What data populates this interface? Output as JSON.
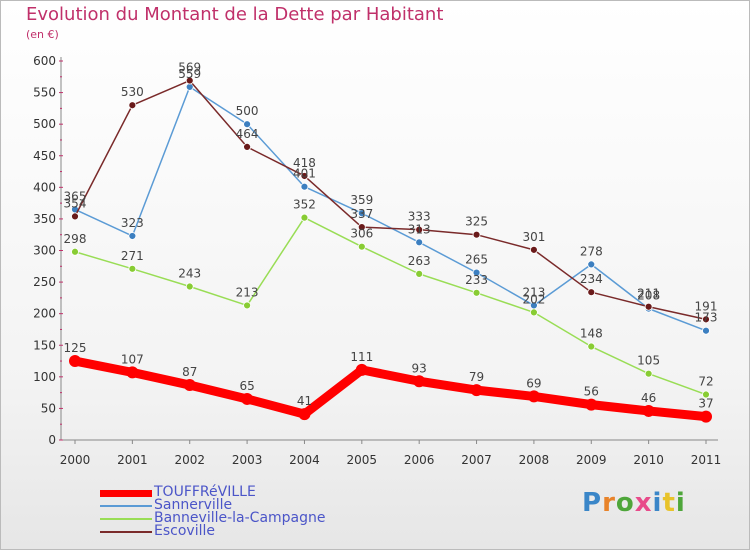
{
  "header": {
    "title": "Evolution du Montant de la Dette par Habitant",
    "subtitle": "(en €)"
  },
  "brand": {
    "logo_text": "Proxiti",
    "letter_colors": [
      "#3a86c8",
      "#e8832a",
      "#4ea63a",
      "#e84b8a",
      "#3a86c8",
      "#e8c32a",
      "#4ea63a"
    ]
  },
  "chart_data": {
    "type": "line",
    "title": "Evolution du Montant de la Dette par Habitant",
    "ylabel": "(en €)",
    "xlabel": "",
    "ylim": [
      0,
      600
    ],
    "yticks": [
      0,
      50,
      100,
      150,
      200,
      250,
      300,
      350,
      400,
      450,
      500,
      550,
      600
    ],
    "x": [
      "2000",
      "2001",
      "2002",
      "2003",
      "2004",
      "2005",
      "2006",
      "2007",
      "2008",
      "2009",
      "2010",
      "2011"
    ],
    "grid": false,
    "legend_position": "bottom-left",
    "series": [
      {
        "name": "TOUFFRéVILLE",
        "color": "#ff0000",
        "marker": "#ff0000",
        "thick": true,
        "values": [
          125,
          107,
          87,
          65,
          41,
          111,
          93,
          79,
          69,
          56,
          46,
          37
        ]
      },
      {
        "name": "Sannerville",
        "color": "#5b9bd5",
        "marker": "#3c7fc0",
        "thick": false,
        "values": [
          365,
          323,
          559,
          500,
          401,
          359,
          313,
          265,
          213,
          278,
          208,
          173
        ]
      },
      {
        "name": "Banneville-la-Campagne",
        "color": "#99dd55",
        "marker": "#88cc33",
        "thick": false,
        "values": [
          298,
          271,
          243,
          213,
          352,
          306,
          263,
          233,
          202,
          148,
          105,
          72
        ]
      },
      {
        "name": "Escoville",
        "color": "#7a2a2a",
        "marker": "#6a1a1a",
        "thick": false,
        "values": [
          354,
          530,
          569,
          464,
          418,
          337,
          333,
          325,
          301,
          234,
          211,
          191
        ]
      }
    ]
  }
}
